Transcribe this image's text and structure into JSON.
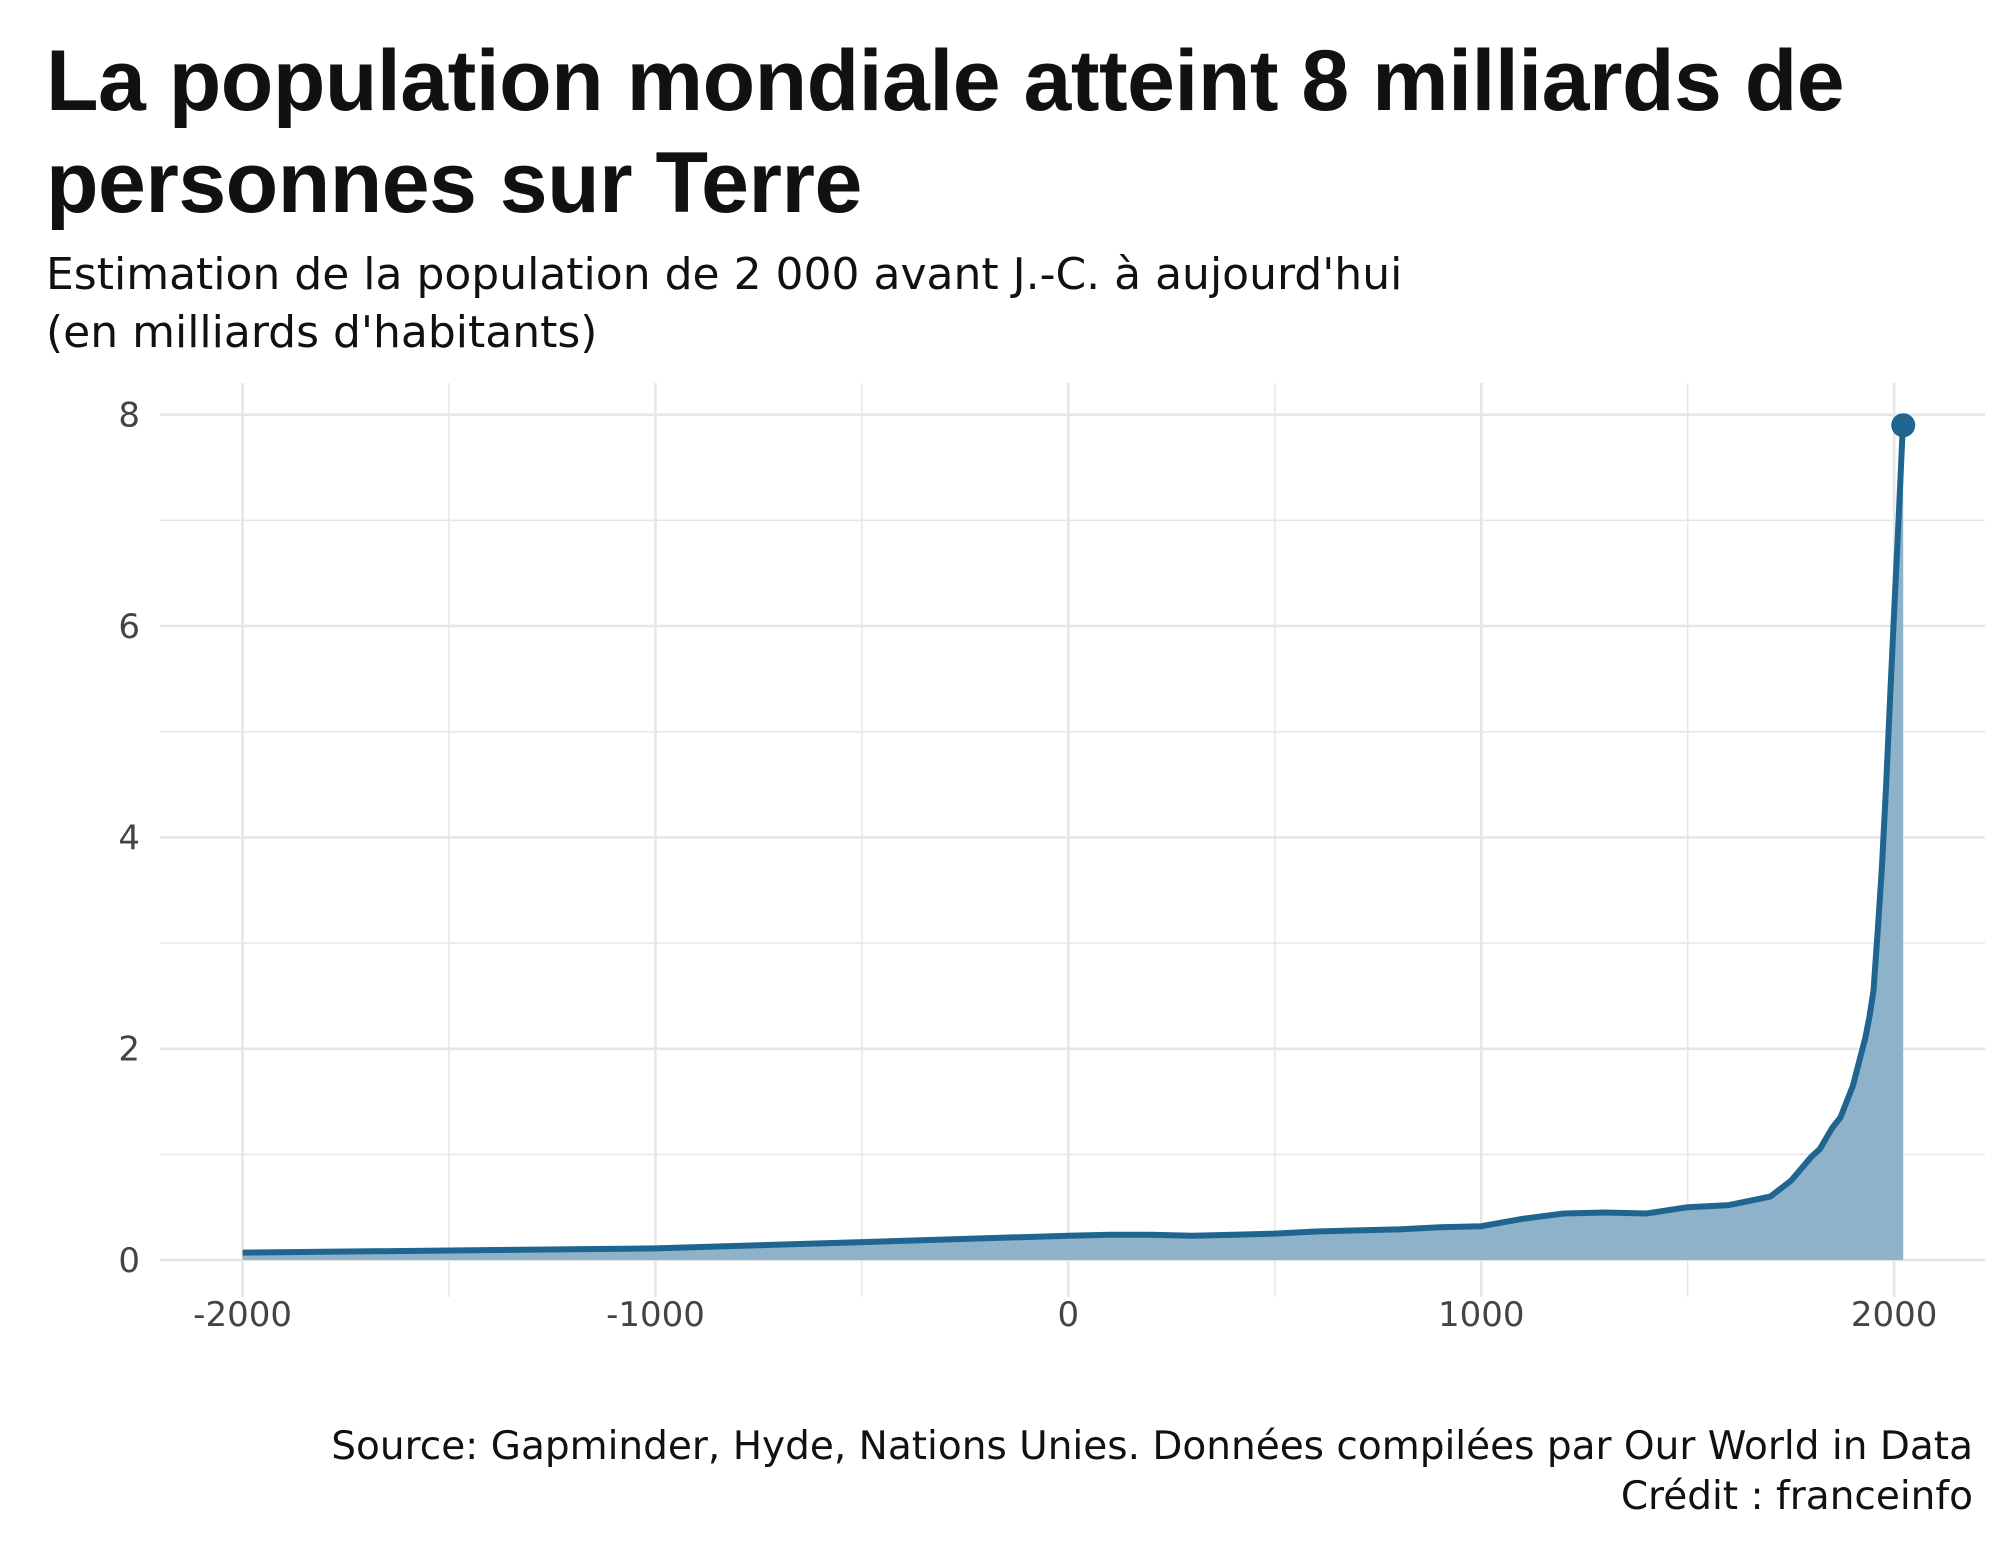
{
  "header": {
    "title": "La population mondiale atteint 8 milliards de personnes sur Terre",
    "subtitle_line1": "Estimation de la population de 2 000 avant J.-C. à aujourd'hui",
    "subtitle_line2": "(en milliards d'habitants)"
  },
  "footer": {
    "source": "Source: Gapminder, Hyde, Nations Unies. Données compilées par Our World in Data",
    "credit": "Crédit : franceinfo"
  },
  "colors": {
    "line": "#1f6590",
    "fill": "#8db2c9",
    "grid": "#e6e6e6",
    "tick_text": "#444444"
  },
  "chart_data": {
    "type": "area",
    "title": "La population mondiale atteint 8 milliards de personnes sur Terre",
    "subtitle": "Estimation de la population de 2 000 avant J.-C. à aujourd'hui (en milliards d'habitants)",
    "xlabel": "",
    "ylabel": "",
    "xlim": [
      -2200,
      2220
    ],
    "ylim": [
      -0.35,
      8.3
    ],
    "grid": true,
    "legend": "none",
    "x_ticks": [
      -2000,
      -1000,
      0,
      1000,
      2000
    ],
    "x_tick_labels": [
      "-2000",
      "-1000",
      "0",
      "1000",
      "2000"
    ],
    "y_ticks": [
      0,
      2,
      4,
      6,
      8
    ],
    "y_tick_labels": [
      "0",
      "2",
      "4",
      "6",
      "8"
    ],
    "x_minor": [
      -1500,
      -500,
      500,
      1500
    ],
    "y_minor": [
      1,
      3,
      5,
      7
    ],
    "series": [
      {
        "name": "Population mondiale",
        "x": [
          -2000,
          -1500,
          -1000,
          -500,
          0,
          100,
          200,
          300,
          400,
          500,
          600,
          700,
          800,
          900,
          1000,
          1100,
          1200,
          1300,
          1400,
          1500,
          1600,
          1700,
          1750,
          1800,
          1820,
          1850,
          1870,
          1900,
          1920,
          1930,
          1940,
          1950,
          1960,
          1970,
          1980,
          1990,
          2000,
          2010,
          2020,
          2022
        ],
        "values": [
          0.07,
          0.09,
          0.11,
          0.17,
          0.23,
          0.24,
          0.24,
          0.23,
          0.24,
          0.25,
          0.27,
          0.28,
          0.29,
          0.31,
          0.32,
          0.39,
          0.44,
          0.45,
          0.44,
          0.5,
          0.52,
          0.6,
          0.75,
          0.98,
          1.05,
          1.25,
          1.35,
          1.65,
          1.95,
          2.1,
          2.3,
          2.55,
          3.1,
          3.7,
          4.45,
          5.3,
          6.15,
          6.95,
          7.8,
          7.9
        ]
      }
    ],
    "highlight_point": {
      "x": 2022,
      "value": 7.9
    }
  }
}
